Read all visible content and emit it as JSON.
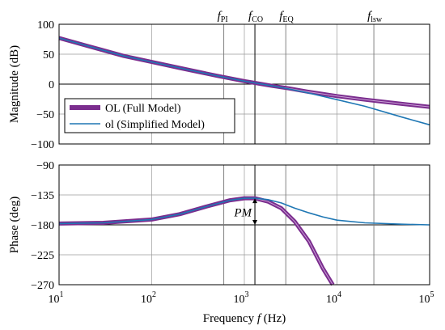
{
  "chart_data": [
    {
      "type": "line",
      "ylabel": "Magnitude (dB)",
      "xscale": "log",
      "xlim": [
        10,
        100000
      ],
      "ylim": [
        -100,
        100
      ],
      "yticks": [
        "100",
        "50",
        "0",
        "−50",
        "−100"
      ],
      "grid": true,
      "legend": {
        "placement": "lower-left",
        "entries": [
          "OL (Full Model)",
          "ol (Simplified Model)"
        ]
      },
      "series": [
        {
          "name": "OL (Full Model)",
          "color": "#7b2d8e",
          "x": [
            10,
            20,
            50,
            100,
            200,
            500,
            1000,
            1300,
            2000,
            3000,
            5000,
            10000,
            20000,
            50000,
            100000
          ],
          "y": [
            77,
            64,
            47,
            37,
            27,
            14,
            5,
            2,
            -3,
            -7,
            -13,
            -20,
            -26,
            -33,
            -38
          ]
        },
        {
          "name": "ol (Simplified Model)",
          "color": "#1f77b4",
          "x": [
            10,
            20,
            50,
            100,
            200,
            500,
            1000,
            1300,
            2000,
            3000,
            5000,
            10000,
            20000,
            50000,
            100000
          ],
          "y": [
            77,
            64,
            47,
            37,
            27,
            14,
            5,
            2,
            -3,
            -8,
            -15,
            -26,
            -37,
            -55,
            -68
          ]
        }
      ]
    },
    {
      "type": "line",
      "ylabel": "Phase (deg)",
      "xlabel": "Frequency",
      "xlabel_var": "f",
      "xlabel_unit": "(Hz)",
      "xscale": "log",
      "xlim": [
        10,
        100000
      ],
      "ylim": [
        -270,
        -90
      ],
      "yticks": [
        "−90",
        "−135",
        "−180",
        "−225",
        "−270"
      ],
      "xticks": [
        {
          "base": "10",
          "exp": "1"
        },
        {
          "base": "10",
          "exp": "2"
        },
        {
          "base": "10",
          "exp": "3"
        },
        {
          "base": "10",
          "exp": "4"
        },
        {
          "base": "10",
          "exp": "5"
        }
      ],
      "grid": true,
      "annotation": "PM",
      "series": [
        {
          "name": "OL (Full Model)",
          "color": "#7b2d8e",
          "x": [
            10,
            30,
            100,
            200,
            400,
            700,
            1000,
            1300,
            1800,
            2500,
            3500,
            5000,
            7000,
            9000
          ],
          "y": [
            -178,
            -177,
            -172,
            -164,
            -152,
            -143,
            -140,
            -140,
            -145,
            -155,
            -175,
            -205,
            -245,
            -270
          ]
        },
        {
          "name": "ol (Simplified Model)",
          "color": "#1f77b4",
          "x": [
            10,
            30,
            100,
            200,
            400,
            700,
            1000,
            1300,
            1800,
            2500,
            3500,
            5000,
            7000,
            10000,
            20000,
            50000,
            100000
          ],
          "y": [
            -178,
            -177,
            -172,
            -164,
            -152,
            -143,
            -140,
            -140,
            -142,
            -147,
            -155,
            -162,
            -168,
            -173,
            -177,
            -179,
            -180
          ]
        }
      ]
    }
  ],
  "markers": [
    {
      "letter": "f",
      "sub": "PI",
      "freq": 600
    },
    {
      "letter": "f",
      "sub": "CO",
      "freq": 1300
    },
    {
      "letter": "f",
      "sub": "EQ",
      "freq": 2800
    },
    {
      "letter": "f",
      "sub": "lsw",
      "freq": 25000
    }
  ],
  "colors": {
    "full": "#7b2d8e",
    "simplified": "#1f77b4",
    "grid": "#9a9a9a"
  }
}
